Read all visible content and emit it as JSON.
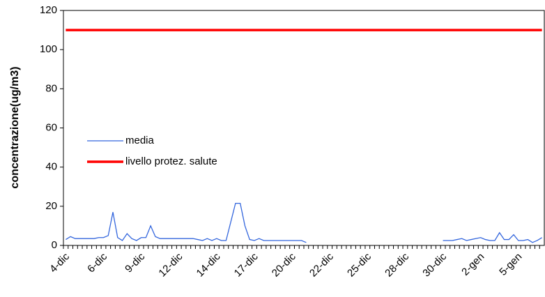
{
  "chart_data": {
    "type": "line",
    "ylabel": "concentrazione(ug/m3)",
    "ylim": [
      0,
      120
    ],
    "yticks": [
      0,
      20,
      40,
      60,
      80,
      100,
      120
    ],
    "categories": [
      "4-dic",
      null,
      null,
      null,
      null,
      null,
      null,
      null,
      "6-dic",
      null,
      null,
      null,
      null,
      null,
      null,
      null,
      "9-dic",
      null,
      null,
      null,
      null,
      null,
      null,
      null,
      "12-dic",
      null,
      null,
      null,
      null,
      null,
      null,
      null,
      "14-dic",
      null,
      null,
      null,
      null,
      null,
      null,
      null,
      "17-dic",
      null,
      null,
      null,
      null,
      null,
      null,
      null,
      "20-dic",
      null,
      null,
      null,
      null,
      null,
      null,
      null,
      "22-dic",
      null,
      null,
      null,
      null,
      null,
      null,
      null,
      "25-dic",
      null,
      null,
      null,
      null,
      null,
      null,
      null,
      "28-dic",
      null,
      null,
      null,
      null,
      null,
      null,
      null,
      "30-dic",
      null,
      null,
      null,
      null,
      null,
      null,
      null,
      "2-gen",
      null,
      null,
      null,
      null,
      null,
      null,
      null,
      "5-gen",
      null,
      null,
      null,
      null,
      null
    ],
    "legend": "upper left",
    "series": [
      {
        "name": "media",
        "color": "#3366dd",
        "values": [
          3,
          4.5,
          3.5,
          3.5,
          3.5,
          3.5,
          3.5,
          4,
          4,
          5,
          17,
          4,
          2.5,
          6,
          3.5,
          2.5,
          4,
          4,
          10,
          4.5,
          3.5,
          3.5,
          3.5,
          3.5,
          3.5,
          3.5,
          3.5,
          3.5,
          3,
          2.5,
          3.5,
          2.5,
          3.5,
          2.5,
          2.5,
          12,
          21.5,
          21.5,
          10,
          3,
          2.5,
          3.5,
          2.5,
          2.5,
          2.5,
          2.5,
          2.5,
          2.5,
          2.5,
          2.5,
          2.5,
          1.5,
          null,
          null,
          null,
          null,
          null,
          null,
          null,
          null,
          null,
          null,
          null,
          null,
          null,
          null,
          null,
          null,
          null,
          null,
          null,
          null,
          null,
          null,
          null,
          null,
          null,
          null,
          null,
          null,
          2.5,
          2.5,
          2.5,
          3,
          3.5,
          2.5,
          3,
          3.5,
          4,
          3,
          2.5,
          2.5,
          6.5,
          3,
          3,
          5.5,
          2.5,
          2.5,
          3,
          1.5,
          2.5,
          4
        ]
      },
      {
        "name": "livello protez. salute",
        "color": "#ff0000",
        "values": [
          110,
          110,
          110,
          110,
          110,
          110,
          110,
          110,
          110,
          110,
          110,
          110,
          110,
          110,
          110,
          110,
          110,
          110,
          110,
          110,
          110,
          110,
          110,
          110,
          110,
          110,
          110,
          110,
          110,
          110,
          110,
          110,
          110,
          110,
          110,
          110,
          110,
          110,
          110,
          110,
          110,
          110,
          110,
          110,
          110,
          110,
          110,
          110,
          110,
          110,
          110,
          110,
          110,
          110,
          110,
          110,
          110,
          110,
          110,
          110,
          110,
          110,
          110,
          110,
          110,
          110,
          110,
          110,
          110,
          110,
          110,
          110,
          110,
          110,
          110,
          110,
          110,
          110,
          110,
          110,
          110,
          110,
          110,
          110,
          110,
          110,
          110,
          110,
          110,
          110,
          110,
          110,
          110,
          110,
          110,
          110,
          110,
          110,
          110,
          110,
          110,
          110
        ]
      }
    ]
  }
}
